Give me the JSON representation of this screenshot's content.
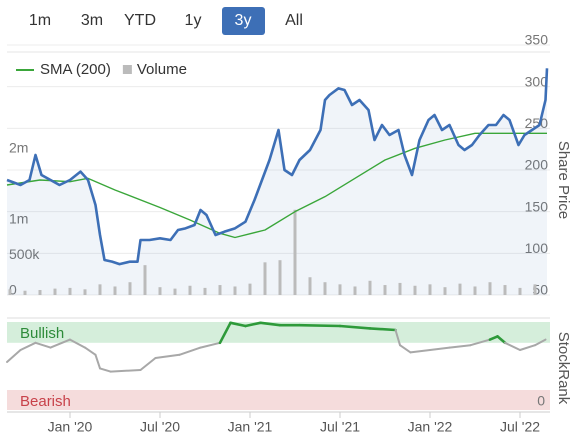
{
  "range_buttons": {
    "items": [
      "1m",
      "3m",
      "YTD",
      "1y",
      "3y",
      "All"
    ],
    "active": 4
  },
  "chart_data": [
    {
      "type": "line",
      "y_label": "Share Price",
      "xlim": [
        -4.2,
        32
      ],
      "ylim": [
        50,
        350
      ],
      "yticks": [
        50,
        100,
        150,
        200,
        250,
        300,
        350
      ],
      "grid": true,
      "y2lim": [
        0,
        3520000
      ],
      "y2ticks": [
        0,
        {
          "value": 500000,
          "label": "500k"
        },
        {
          "value": 1000000,
          "label": "1m"
        },
        {
          "value": 2000000,
          "label": "2m"
        }
      ],
      "series": [
        {
          "color": "#3d6fb6",
          "x": [
            -4.2,
            -3.3,
            -2.7,
            -2.3,
            -1.9,
            -1.3,
            -0.7,
            0,
            0.7,
            1.2,
            1.7,
            2,
            2.3,
            2.8,
            3.3,
            4,
            4.5,
            4.7,
            5.3,
            6,
            6.7,
            7.2,
            7.7,
            8.3,
            8.7,
            9.1,
            9.7,
            10.3,
            11,
            11.7,
            12.3,
            12.8,
            13.3,
            13.9,
            14.3,
            14.8,
            15.3,
            16,
            16.7,
            17,
            17.3,
            17.9,
            18.3,
            18.8,
            19.3,
            19.9,
            20.3,
            20.8,
            21.3,
            21.9,
            22.3,
            22.8,
            23.3,
            23.9,
            24.3,
            24.8,
            25.3,
            25.9,
            26.3,
            26.8,
            27.3,
            27.9,
            28.4,
            28.9,
            29.3,
            29.9,
            30.3,
            30.8,
            31.3,
            31.7,
            31.8
          ],
          "values": [
            188,
            182,
            188,
            218,
            194,
            188,
            182,
            188,
            198,
            188,
            158,
            122,
            92,
            90,
            87,
            90,
            90,
            116,
            116,
            118,
            116,
            128,
            130,
            134,
            152,
            146,
            122,
            126,
            130,
            138,
            164,
            188,
            212,
            248,
            200,
            194,
            212,
            224,
            248,
            284,
            290,
            298,
            296,
            278,
            284,
            272,
            236,
            254,
            242,
            248,
            218,
            194,
            236,
            260,
            266,
            248,
            254,
            230,
            224,
            230,
            242,
            254,
            254,
            266,
            260,
            230,
            242,
            248,
            254,
            284,
            322
          ]
        },
        {
          "name": "SMA (200)",
          "color": "#3aa63a",
          "x": [
            -4.2,
            -2,
            0,
            1.2,
            3,
            6,
            8,
            10,
            11,
            13,
            15,
            17,
            19,
            21,
            23,
            25,
            27,
            29,
            31.8
          ],
          "values": [
            182,
            188,
            186,
            190,
            176,
            155,
            140,
            124,
            119,
            128,
            150,
            168,
            190,
            212,
            226,
            236,
            244,
            244,
            244
          ]
        },
        {
          "name": "Volume",
          "color": "#bbbbbb",
          "axis": "y2",
          "type": "bar",
          "x": [
            -4,
            -3,
            -2,
            -1,
            0,
            1,
            2,
            3,
            4,
            5,
            6,
            7,
            8,
            9,
            10,
            11,
            12,
            13,
            14,
            15,
            16,
            17,
            18,
            19,
            20,
            21,
            22,
            23,
            24,
            25,
            26,
            27,
            28,
            29,
            30,
            31
          ],
          "values": [
            80000,
            60000,
            70000,
            90000,
            100000,
            80000,
            150000,
            120000,
            180000,
            420000,
            110000,
            90000,
            130000,
            100000,
            140000,
            120000,
            160000,
            460000,
            490000,
            1200000,
            250000,
            180000,
            150000,
            120000,
            200000,
            140000,
            170000,
            130000,
            150000,
            110000,
            160000,
            120000,
            180000,
            140000,
            100000,
            150000
          ]
        }
      ]
    },
    {
      "type": "line",
      "y_label": "StockRank",
      "xlim": [
        -4.2,
        32
      ],
      "ylim": [
        -10,
        100
      ],
      "yticks": [
        0
      ],
      "xticks": [
        {
          "value": 0,
          "label": "Jan '20"
        },
        {
          "value": 6,
          "label": "Jul '20"
        },
        {
          "value": 12,
          "label": "Jan '21"
        },
        {
          "value": 18,
          "label": "Jul '21"
        },
        {
          "value": 24,
          "label": "Jan '22"
        },
        {
          "value": 30,
          "label": "Jul '22"
        }
      ],
      "bands": [
        {
          "label": "Bullish",
          "range": [
            74,
            100
          ],
          "color": "#d5eedb",
          "text_color": "#2e8b3a"
        },
        {
          "label": "Bearish",
          "range": [
            -10,
            15
          ],
          "color": "#f5dcdc",
          "text_color": "#c8424a"
        }
      ],
      "colors": {
        "above": "#2e9a3a",
        "below": "#a8a8a8"
      },
      "x": [
        -4.2,
        -3.3,
        -2.3,
        -1.3,
        0,
        1,
        1.7,
        2,
        2.7,
        4.7,
        5.7,
        7.3,
        8.7,
        10,
        10.7,
        11.7,
        12.7,
        14,
        15.3,
        18,
        20,
        21.7,
        22,
        22.7,
        24,
        25.3,
        26.7,
        28,
        28.5,
        29,
        30,
        31,
        31.7
      ],
      "values": [
        50,
        65,
        74,
        68,
        78,
        68,
        59,
        42,
        38,
        40,
        55,
        59,
        68,
        74,
        99,
        95,
        99,
        96,
        96,
        95,
        92,
        90,
        71,
        62,
        65,
        68,
        71,
        78,
        82,
        74,
        65,
        71,
        78
      ]
    }
  ]
}
